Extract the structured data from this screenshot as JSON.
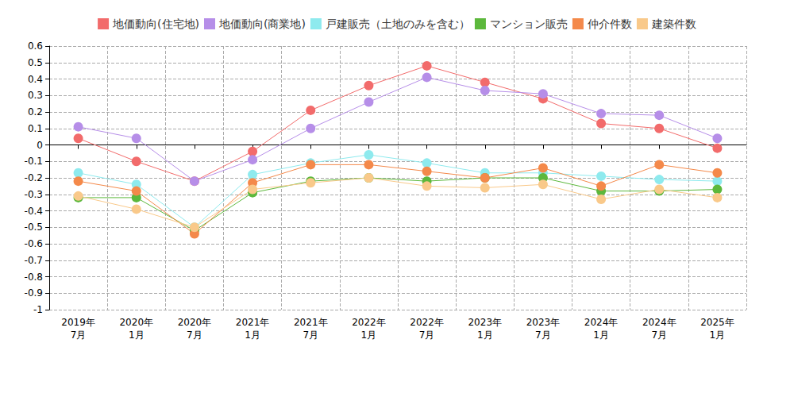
{
  "chart_data": {
    "type": "line",
    "categories": [
      "2019年\n7月",
      "2020年\n1月",
      "2020年\n7月",
      "2021年\n1月",
      "2021年\n7月",
      "2022年\n1月",
      "2022年\n7月",
      "2023年\n1月",
      "2023年\n7月",
      "2024年\n1月",
      "2024年\n7月",
      "2025年\n1月"
    ],
    "series": [
      {
        "name": "地価動向(住宅地)",
        "color": "#f26b6b",
        "values": [
          0.04,
          -0.1,
          -0.22,
          -0.04,
          0.21,
          0.36,
          0.48,
          0.38,
          0.28,
          0.13,
          0.1,
          -0.02
        ]
      },
      {
        "name": "地価動向(商業地)",
        "color": "#b68ee8",
        "values": [
          0.11,
          0.04,
          -0.22,
          -0.09,
          0.1,
          0.26,
          0.41,
          0.33,
          0.31,
          0.19,
          0.18,
          0.04
        ]
      },
      {
        "name": "戸建販売（土地のみを含む）",
        "color": "#8eeaee",
        "values": [
          -0.17,
          -0.24,
          -0.5,
          -0.18,
          -0.11,
          -0.06,
          -0.11,
          -0.17,
          -0.17,
          -0.19,
          -0.21,
          -0.22
        ]
      },
      {
        "name": "マンション販売",
        "color": "#5cb83c",
        "values": [
          -0.32,
          -0.32,
          -0.52,
          -0.29,
          -0.22,
          -0.2,
          -0.22,
          -0.2,
          -0.2,
          -0.28,
          -0.28,
          -0.27
        ]
      },
      {
        "name": "仲介件数",
        "color": "#f4894a",
        "values": [
          -0.22,
          -0.28,
          -0.54,
          -0.23,
          -0.12,
          -0.12,
          -0.16,
          -0.2,
          -0.14,
          -0.25,
          -0.12,
          -0.17
        ]
      },
      {
        "name": "建築件数",
        "color": "#f9c98a",
        "values": [
          -0.31,
          -0.39,
          -0.5,
          -0.27,
          -0.23,
          -0.2,
          -0.25,
          -0.26,
          -0.24,
          -0.33,
          -0.27,
          -0.32
        ]
      }
    ],
    "ylim": [
      -1,
      0.6
    ],
    "yticks": [
      -1,
      -0.9,
      -0.8,
      -0.7,
      -0.6,
      -0.5,
      -0.4,
      -0.3,
      -0.2,
      -0.1,
      0,
      0.1,
      0.2,
      0.3,
      0.4,
      0.5,
      0.6
    ],
    "grid": true,
    "legend": "top",
    "marker": "circle",
    "line_style": "solid"
  }
}
